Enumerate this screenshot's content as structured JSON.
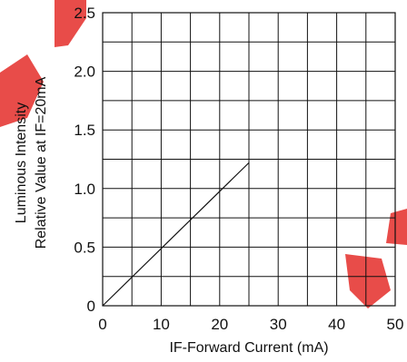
{
  "chart_data": {
    "type": "line",
    "xlabel": "IF-Forward Current (mA)",
    "ylabel_lines": [
      "Luminous Intensity",
      "Relative Value at IF=20mA"
    ],
    "xlim": [
      0,
      50
    ],
    "ylim": [
      0,
      2.5
    ],
    "x_ticks": [
      0,
      10,
      20,
      30,
      40,
      50
    ],
    "y_ticks": [
      0,
      0.5,
      1.0,
      1.5,
      2.0,
      2.5
    ],
    "x_tick_labels": [
      "0",
      "10",
      "20",
      "30",
      "40",
      "50"
    ],
    "y_tick_labels": [
      "0",
      "0.5",
      "1.0",
      "1.5",
      "2.0",
      "2.5"
    ],
    "x_grid_step": 5,
    "y_grid_step": 0.25,
    "grid": true,
    "series": [
      {
        "x": [
          0,
          25
        ],
        "y": [
          0,
          1.22
        ]
      }
    ]
  },
  "colors": {
    "line": "#111111",
    "watermark": "#e53935"
  }
}
